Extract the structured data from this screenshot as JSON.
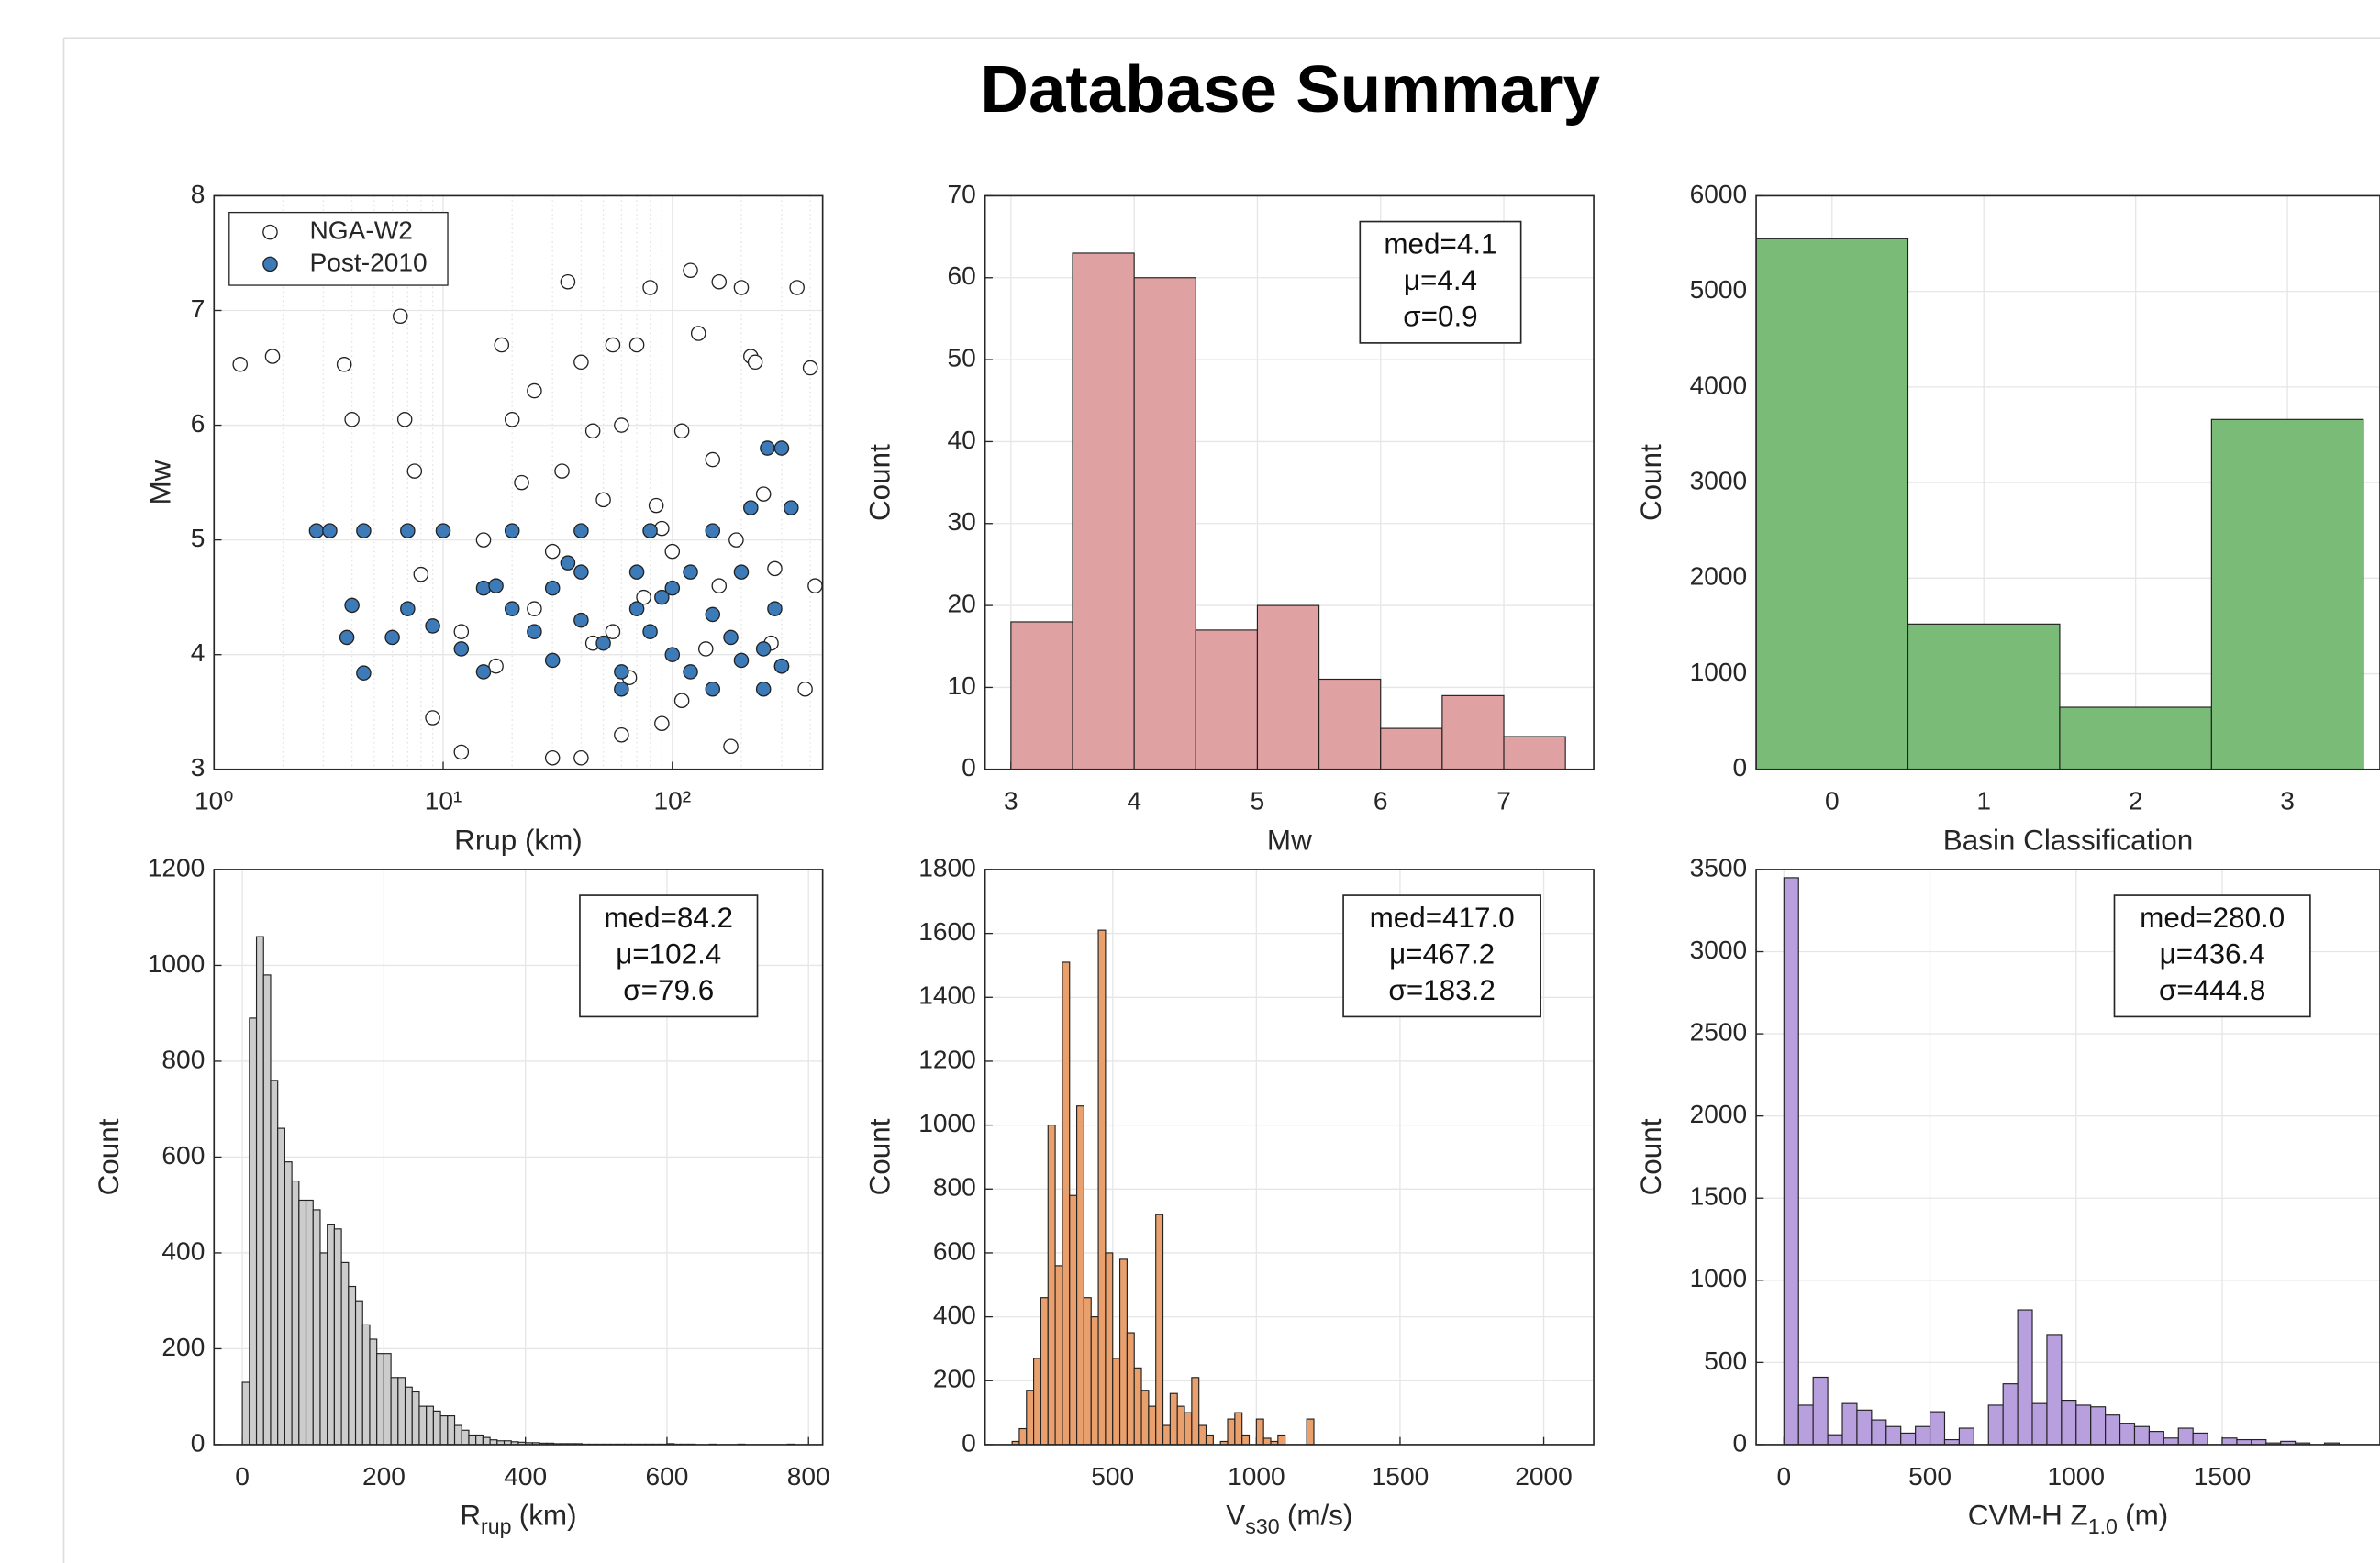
{
  "title": "Database Summary",
  "chart_data": [
    {
      "type": "scatter",
      "xlabel": "Rrup (km)",
      "ylabel": "Mw",
      "xscale": "log",
      "grid": true,
      "legend": "northwest",
      "xlim": [
        1,
        453
      ],
      "xticks": [
        {
          "value": 1,
          "label": "10⁰"
        },
        {
          "value": 10,
          "label": "10¹"
        },
        {
          "value": 100,
          "label": "10²"
        }
      ],
      "ylim": [
        3,
        8
      ],
      "yticks": [
        3,
        4,
        5,
        6,
        7,
        8
      ],
      "series": [
        {
          "name": "NGA-W2",
          "color": "#ffffff",
          "x": [
            1.3,
            1.8,
            4.0,
            3.7,
            6.5,
            6.8,
            7.5,
            8,
            9,
            12,
            15,
            18,
            20,
            22,
            25,
            30,
            35,
            40,
            45,
            50,
            55,
            60,
            70,
            80,
            90,
            100,
            110,
            120,
            130,
            150,
            160,
            180,
            200,
            220,
            250,
            280,
            300,
            350,
            400,
            420,
            380,
            30,
            45,
            65,
            85,
            140,
            25,
            12,
            17,
            230,
            60,
            110,
            160,
            90,
            40,
            55,
            33,
            75,
            190,
            270
          ],
          "values": [
            6.53,
            6.6,
            6.05,
            6.53,
            6.95,
            6.05,
            5.6,
            4.7,
            3.45,
            3.15,
            5.0,
            6.7,
            6.05,
            5.5,
            4.4,
            3.1,
            7.25,
            6.55,
            5.95,
            5.35,
            4.2,
            3.3,
            6.7,
            7.2,
            5.1,
            4.9,
            3.6,
            7.35,
            6.8,
            5.7,
            4.6,
            3.2,
            7.2,
            6.6,
            5.4,
            4.75,
            3.9,
            7.2,
            6.5,
            4.6,
            3.7,
            4.9,
            4.1,
            3.8,
            5.3,
            4.05,
            6.3,
            4.2,
            3.9,
            6.55,
            6.0,
            5.95,
            7.25,
            3.4,
            3.1,
            6.7,
            5.6,
            4.5,
            5.0,
            4.1
          ]
        },
        {
          "name": "Post-2010",
          "color": "#3d7ab8",
          "x": [
            2.8,
            3.2,
            4.5,
            7,
            10,
            20,
            40,
            80,
            150,
            260,
            300,
            330,
            4,
            3.8,
            4.5,
            6,
            7,
            9,
            12,
            15,
            20,
            25,
            30,
            40,
            50,
            60,
            70,
            80,
            100,
            120,
            150,
            180,
            200,
            250,
            280,
            300,
            40,
            70,
            120,
            200,
            30,
            100,
            60,
            150,
            220,
            15,
            35,
            90,
            250,
            17
          ],
          "values": [
            5.08,
            5.08,
            5.08,
            5.08,
            5.08,
            5.08,
            5.08,
            5.08,
            5.08,
            5.8,
            5.8,
            5.28,
            4.43,
            4.15,
            3.84,
            4.15,
            4.4,
            4.25,
            4.05,
            3.85,
            4.4,
            4.2,
            3.95,
            4.3,
            4.1,
            3.85,
            4.4,
            4.2,
            4.0,
            3.85,
            4.35,
            4.15,
            3.95,
            4.05,
            4.4,
            3.9,
            4.72,
            4.72,
            4.72,
            4.72,
            4.58,
            4.58,
            3.7,
            3.7,
            5.28,
            4.58,
            4.8,
            4.5,
            3.7,
            4.6
          ]
        }
      ]
    },
    {
      "type": "histogram",
      "xlabel": "Mw",
      "ylabel": "Count",
      "color": "#e0a1a3",
      "grid": true,
      "bins": [
        3,
        3.5,
        4,
        4.5,
        5,
        5.5,
        6,
        6.5,
        7,
        7.5
      ],
      "values": [
        18,
        63,
        60,
        17,
        20,
        11,
        5,
        9,
        4
      ],
      "xlim": [
        2.79,
        7.73
      ],
      "xticks": [
        3,
        4,
        5,
        6,
        7
      ],
      "ylim": [
        0,
        70
      ],
      "yticks": [
        0,
        10,
        20,
        30,
        40,
        50,
        60,
        70
      ],
      "stats": [
        "med=4.1",
        "μ=4.4",
        "σ=0.9"
      ]
    },
    {
      "type": "histogram",
      "xlabel": "Basin Classification",
      "ylabel": "Count",
      "color": "#79bb77",
      "grid": true,
      "bins": [
        -0.5,
        0.5,
        1.5,
        2.5,
        3.5
      ],
      "values": [
        5550,
        1520,
        650,
        3660
      ],
      "xlim": [
        -0.5,
        3.61
      ],
      "xticks": [
        0,
        1,
        2,
        3
      ],
      "ylim": [
        0,
        6000
      ],
      "yticks": [
        0,
        1000,
        2000,
        3000,
        4000,
        5000,
        6000
      ]
    },
    {
      "type": "histogram",
      "xlabel": {
        "text": "R",
        "sub": "rup",
        "unit": "(km)"
      },
      "ylabel": "Count",
      "color": "#cccccc",
      "grid": true,
      "bins": [
        0,
        10,
        20,
        30,
        40,
        50,
        60,
        70,
        80,
        90,
        100,
        110,
        120,
        130,
        140,
        150,
        160,
        170,
        180,
        190,
        200,
        210,
        220,
        230,
        240,
        250,
        260,
        270,
        280,
        290,
        300,
        310,
        320,
        330,
        340,
        350,
        360,
        370,
        380,
        390,
        400,
        410,
        420,
        430,
        440,
        450,
        460,
        470,
        480,
        490,
        500,
        510,
        520,
        530,
        540,
        550,
        560,
        570,
        580,
        590,
        600,
        610,
        620,
        630,
        640,
        650,
        660,
        670,
        680,
        690,
        700,
        710,
        720,
        730,
        740,
        750,
        760,
        770,
        780,
        790,
        800
      ],
      "values": [
        130,
        890,
        1060,
        980,
        760,
        660,
        590,
        550,
        510,
        510,
        490,
        400,
        460,
        450,
        380,
        330,
        300,
        250,
        220,
        190,
        190,
        140,
        140,
        120,
        110,
        80,
        80,
        70,
        60,
        60,
        40,
        30,
        20,
        20,
        15,
        10,
        8,
        8,
        6,
        5,
        4,
        4,
        3,
        3,
        2,
        2,
        2,
        2,
        1,
        1,
        1,
        1,
        1,
        1,
        1,
        1,
        1,
        1,
        1,
        1,
        2,
        1,
        1,
        1,
        0,
        0,
        1,
        0,
        0,
        0,
        1,
        0,
        0,
        0,
        0,
        0,
        0,
        1,
        0,
        0
      ],
      "xlim": [
        -40,
        820
      ],
      "xticks": [
        0,
        200,
        400,
        600,
        800
      ],
      "ylim": [
        0,
        1200
      ],
      "yticks": [
        0,
        200,
        400,
        600,
        800,
        1000,
        1200
      ],
      "stats": [
        "med=84.2",
        "μ=102.4",
        "σ=79.6"
      ]
    },
    {
      "type": "histogram",
      "xlabel": {
        "text": "V",
        "sub": "s30",
        "unit": "(m/s)"
      },
      "ylabel": "Count",
      "color": "#e9a06d",
      "grid": true,
      "bins": [
        150,
        175,
        200,
        225,
        250,
        275,
        300,
        325,
        350,
        375,
        400,
        425,
        450,
        475,
        500,
        525,
        550,
        575,
        600,
        625,
        650,
        675,
        700,
        725,
        750,
        775,
        800,
        825,
        850,
        875,
        900,
        925,
        950,
        975,
        1000,
        1025,
        1050,
        1075,
        1100,
        1125,
        1150,
        1175,
        1200
      ],
      "values": [
        10,
        50,
        170,
        270,
        460,
        1000,
        560,
        1510,
        780,
        1060,
        460,
        400,
        1610,
        600,
        270,
        580,
        350,
        240,
        170,
        120,
        720,
        60,
        160,
        120,
        100,
        210,
        60,
        30,
        0,
        10,
        80,
        100,
        30,
        0,
        80,
        20,
        10,
        30,
        0,
        0,
        0,
        80
      ],
      "xlim": [
        56,
        2174
      ],
      "xticks": [
        500,
        1000,
        1500,
        2000
      ],
      "ylim": [
        0,
        1800
      ],
      "yticks": [
        0,
        200,
        400,
        600,
        800,
        1000,
        1200,
        1400,
        1600,
        1800
      ],
      "stats": [
        "med=417.0",
        "μ=467.2",
        "σ=183.2"
      ]
    },
    {
      "type": "histogram",
      "xlabel": {
        "text": "CVM-H Z",
        "sub": "1.0",
        "unit": "(m)"
      },
      "ylabel": "Count",
      "color": "#b89fdd",
      "grid": true,
      "bins": [
        0,
        50,
        100,
        150,
        200,
        250,
        300,
        350,
        400,
        450,
        500,
        550,
        600,
        650,
        700,
        750,
        800,
        850,
        900,
        950,
        1000,
        1050,
        1100,
        1150,
        1200,
        1250,
        1300,
        1350,
        1400,
        1450,
        1500,
        1550,
        1600,
        1650,
        1700,
        1750,
        1800,
        1850,
        1900
      ],
      "values": [
        3450,
        240,
        410,
        60,
        250,
        210,
        150,
        110,
        70,
        110,
        200,
        30,
        100,
        0,
        240,
        370,
        820,
        250,
        670,
        270,
        240,
        230,
        180,
        130,
        110,
        80,
        40,
        100,
        70,
        0,
        40,
        30,
        30,
        10,
        20,
        10,
        0,
        10
      ],
      "xlim": [
        -95,
        2040
      ],
      "xticks": [
        0,
        500,
        1000,
        1500
      ],
      "ylim": [
        0,
        3500
      ],
      "yticks": [
        0,
        500,
        1000,
        1500,
        2000,
        2500,
        3000,
        3500
      ],
      "stats": [
        "med=280.0",
        "μ=436.4",
        "σ=444.8"
      ]
    }
  ]
}
